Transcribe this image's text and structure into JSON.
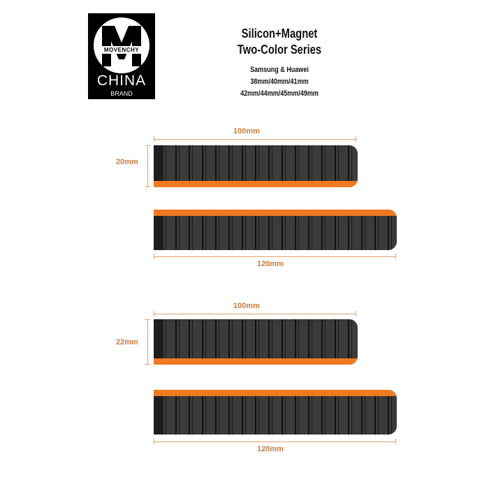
{
  "logo": {
    "letter": "M",
    "wordmark": "MOVENCHY",
    "line1": "CHINA",
    "line2": "BRAND"
  },
  "header": {
    "title1": "Silicon+Magnet",
    "title2": "Two-Color Series",
    "brands": "Samsung & Huawei",
    "sizes1": "38mm/40mm/41mm",
    "sizes2": "42mm/44mm/45mm/49mm"
  },
  "group1": {
    "short_length": "100mm",
    "width": "20mm",
    "long_length": "120mm"
  },
  "group2": {
    "short_length": "100mm",
    "width": "22mm",
    "long_length": "120mm"
  },
  "colors": {
    "band": "#3b3b3b",
    "accent": "#f07a22",
    "dimension": "#c97a3f"
  }
}
